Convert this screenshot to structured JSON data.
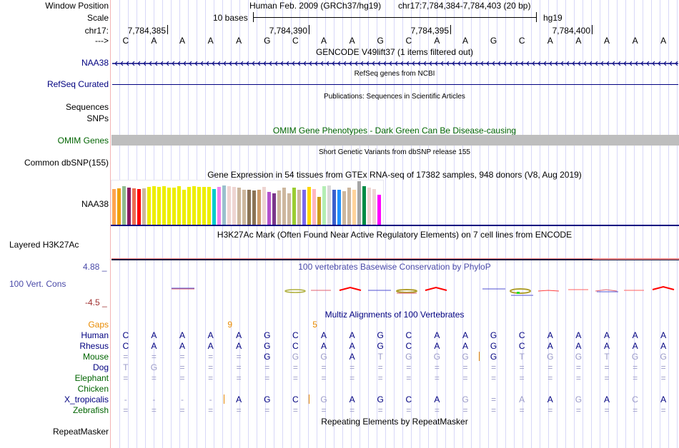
{
  "header": {
    "window_position_label": "Window Position",
    "scale_label": "Scale",
    "chrom_label": "chr17:",
    "strand_label": "--->",
    "assembly": "Human Feb. 2009 (GRCh37/hg19)",
    "position": "chr17:7,784,384-7,784,403 (20 bp)",
    "scale_text": "10 bases",
    "scale_db": "hg19",
    "ruler_ticks": [
      "7,784,385",
      "7,784,390",
      "7,784,395",
      "7,784,400"
    ]
  },
  "sequence": [
    "C",
    "A",
    "A",
    "A",
    "A",
    "G",
    "C",
    "A",
    "A",
    "G",
    "C",
    "A",
    "A",
    "G",
    "C",
    "A",
    "A",
    "A",
    "A",
    "A"
  ],
  "tracks": {
    "gencode": {
      "title": "GENCODE V49lift37 (1 items filtered out)",
      "label": "NAA38"
    },
    "refseq": {
      "title": "RefSeq genes from NCBI",
      "label": "RefSeq Curated"
    },
    "publications": {
      "title": "Publications: Sequences in Scientific Articles",
      "label1": "Sequences",
      "label2": "SNPs"
    },
    "omim": {
      "title": "OMIM Gene Phenotypes - Dark Green Can Be Disease-causing",
      "label": "OMIM Genes"
    },
    "dbsnp": {
      "title": "Short Genetic Variants from dbSNP release 155",
      "label": "Common dbSNP(155)"
    },
    "gtex": {
      "title": "Gene Expression in 54 tissues from GTEx RNA-seq of 17382 samples, 948 donors (V8, Aug 2019)",
      "label": "NAA38",
      "levels": [
        0.82,
        0.84,
        0.89,
        0.86,
        0.84,
        0.82,
        0.84,
        0.87,
        0.88,
        0.87,
        0.88,
        0.85,
        0.85,
        0.89,
        0.8,
        0.87,
        0.89,
        0.87,
        0.87,
        0.87,
        0.82,
        0.87,
        0.91,
        0.89,
        0.87,
        0.85,
        0.81,
        0.8,
        0.79,
        0.81,
        0.87,
        0.75,
        0.72,
        0.79,
        0.85,
        0.72,
        0.85,
        0.8,
        0.8,
        0.87,
        0.83,
        0.65,
        0.89,
        0.9,
        0.8,
        0.8,
        0.78,
        0.86,
        0.81,
        1.0,
        0.89,
        0.85,
        0.83,
        0.7
      ],
      "colors": [
        "#ffa54f",
        "#eea20e",
        "#8fbc8f",
        "#8b1c62",
        "#ee6a50",
        "#ff0000",
        "#cdb79e",
        "#eeee00",
        "#eeee00",
        "#eeee00",
        "#eeee00",
        "#eeee00",
        "#eeee00",
        "#eeee00",
        "#eeee00",
        "#eeee00",
        "#eeee00",
        "#eeee00",
        "#eeee00",
        "#eeee00",
        "#00cdcd",
        "#ee82ee",
        "#9ac0cd",
        "#eed5d2",
        "#eed5d2",
        "#cdb79e",
        "#cdb79e",
        "#8b7355",
        "#8b7355",
        "#cd9b6b",
        "#eed5d2",
        "#b452cd",
        "#7a378b",
        "#cdb79e",
        "#cdb79e",
        "#cdb79e",
        "#9acd32",
        "#cdb79e",
        "#7b68ee",
        "#ffd700",
        "#ffb6c1",
        "#cd9b1d",
        "#b4eeb4",
        "#d9d9d9",
        "#3a5fcd",
        "#1e90ff",
        "#cdb79e",
        "#cdb79e",
        "#ffd39b",
        "#a6a6a6",
        "#008b45",
        "#eed5d2",
        "#eed5d2",
        "#ff00ff"
      ]
    },
    "h3k27ac": {
      "title": "H3K27Ac Mark (Often Found Near Active Regulatory Elements) on 7 cell lines from ENCODE",
      "label": "Layered H3K27Ac"
    },
    "phylop": {
      "title": "100 vertebrates Basewise Conservation by PhyloP",
      "label": "100 Vert. Cons",
      "max": "4.88 _",
      "min": "-4.5 _"
    },
    "multiz": {
      "title": "Multiz Alignments of 100 Vertebrates",
      "gaps_label": "Gaps",
      "gaps": [
        {
          "after": 3,
          "value": "9"
        },
        {
          "after": 6,
          "value": "5"
        }
      ],
      "species": [
        {
          "name": "Human",
          "color": "#000080",
          "bases": [
            "C",
            "A",
            "A",
            "A",
            "A",
            "G",
            "C",
            "A",
            "A",
            "G",
            "C",
            "A",
            "A",
            "G",
            "C",
            "A",
            "A",
            "A",
            "A",
            "A"
          ],
          "faint": []
        },
        {
          "name": "Rhesus",
          "color": "#000080",
          "bases": [
            "C",
            "A",
            "A",
            "A",
            "A",
            "G",
            "C",
            "A",
            "A",
            "G",
            "C",
            "A",
            "A",
            "G",
            "C",
            "A",
            "A",
            "A",
            "A",
            "A"
          ],
          "faint": []
        },
        {
          "name": "Mouse",
          "color": "#006400",
          "bases": [
            "=",
            "=",
            "=",
            "=",
            "=",
            "G",
            "G",
            "G",
            "A",
            "T",
            "G",
            "G",
            "G",
            "G",
            "T",
            "G",
            "G",
            "T",
            "G",
            "G"
          ],
          "faint": [
            0,
            1,
            2,
            3,
            4,
            6,
            7,
            9,
            10,
            11,
            12,
            14,
            15,
            16,
            17,
            18,
            19
          ]
        },
        {
          "name": "Dog",
          "color": "#000080",
          "bases": [
            "T",
            "G",
            "=",
            "=",
            "=",
            "=",
            "=",
            "=",
            "=",
            "=",
            "=",
            "=",
            "=",
            "=",
            "=",
            "=",
            "=",
            "=",
            "=",
            "="
          ],
          "faint": [
            0,
            1,
            2,
            3,
            4,
            5,
            6,
            7,
            8,
            9,
            10,
            11,
            12,
            13,
            14,
            15,
            16,
            17,
            18,
            19
          ]
        },
        {
          "name": "Elephant",
          "color": "#006400",
          "bases": [
            "=",
            "=",
            "=",
            "=",
            "=",
            "=",
            "=",
            "=",
            "=",
            "=",
            "=",
            "=",
            "=",
            "=",
            "=",
            "=",
            "=",
            "=",
            "=",
            "="
          ],
          "faint": [
            0,
            1,
            2,
            3,
            4,
            5,
            6,
            7,
            8,
            9,
            10,
            11,
            12,
            13,
            14,
            15,
            16,
            17,
            18,
            19
          ]
        },
        {
          "name": "Chicken",
          "color": "#006400",
          "bases": [],
          "faint": []
        },
        {
          "name": "X_tropicalis",
          "color": "#000080",
          "bases": [
            "-",
            "-",
            "-",
            "-",
            "A",
            "G",
            "C",
            "G",
            "A",
            "G",
            "C",
            "A",
            "G",
            "=",
            "A",
            "A",
            "G",
            "A",
            "C",
            "A"
          ],
          "faint": [
            0,
            1,
            2,
            3,
            7,
            12,
            13,
            14,
            16,
            18
          ]
        },
        {
          "name": "Zebrafish",
          "color": "#006400",
          "bases": [
            "=",
            "=",
            "=",
            "=",
            "=",
            "=",
            "=",
            "=",
            "=",
            "=",
            "=",
            "=",
            "=",
            "=",
            "=",
            "=",
            "=",
            "=",
            "=",
            "="
          ],
          "faint": [
            0,
            1,
            2,
            3,
            4,
            5,
            6,
            7,
            8,
            9,
            10,
            11,
            12,
            13,
            14,
            15,
            16,
            17,
            18,
            19
          ]
        }
      ]
    },
    "repeatmasker": {
      "title": "Repeating Elements by RepeatMasker",
      "label": "RepeatMasker"
    }
  },
  "colors": {
    "navy": "#000080",
    "green": "#006400",
    "omim_bar": "#bebebe",
    "orange": "#e88a00",
    "gridline": "#d8d8f8"
  }
}
